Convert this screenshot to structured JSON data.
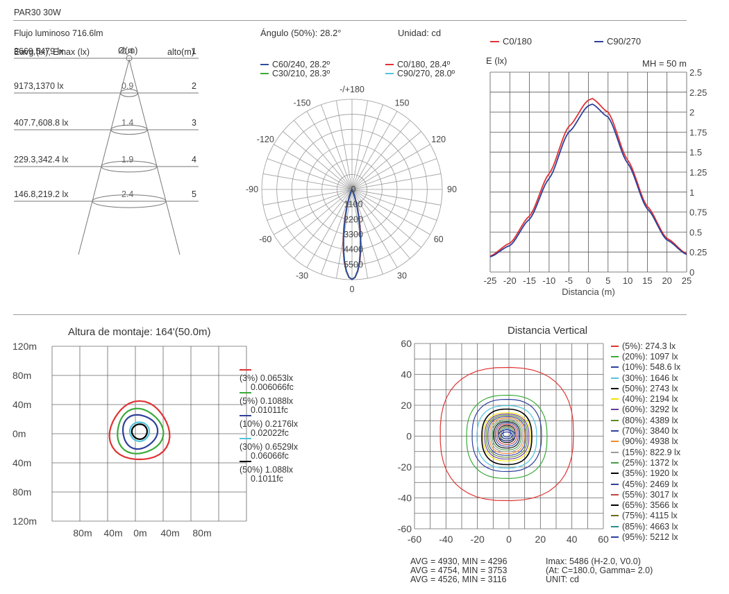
{
  "header": {
    "title": "PAR30 30W"
  },
  "cone": {
    "flux": "Flujo luminoso 716.6lm",
    "col_eavg": "Eavg (lx), Emax (lx)",
    "col_diam": "Ø(m)",
    "col_height": "alto(m)",
    "rows": [
      {
        "lux": "3669,5479 lx",
        "diam": "0.4",
        "height": "1"
      },
      {
        "lux": "9173,1370 lx",
        "diam": "0.9",
        "height": "2"
      },
      {
        "lux": "407.7,608.8 lx",
        "diam": "1.4",
        "height": "3"
      },
      {
        "lux": "229.3,342.4 lx",
        "diam": "1.9",
        "height": "4"
      },
      {
        "lux": "146.8,219.2 lx",
        "diam": "2.4",
        "height": "5"
      }
    ]
  },
  "polar": {
    "angle_text": "Ángulo (50%): 28.2°",
    "unit_text": "Unidad: cd",
    "legend": [
      {
        "label": "C60/240, 28.2º",
        "color": "#2e4f9c"
      },
      {
        "label": "C0/180, 28.4º",
        "color": "#e03232"
      },
      {
        "label": "C30/210, 28.3º",
        "color": "#3aaa3a"
      },
      {
        "label": "C90/270, 28.0º",
        "color": "#52c3dc"
      }
    ],
    "angle_labels": [
      {
        "text": "-/+180",
        "deg": 180
      },
      {
        "text": "-150",
        "deg": -150
      },
      {
        "text": "150",
        "deg": 150
      },
      {
        "text": "-120",
        "deg": -120
      },
      {
        "text": "120",
        "deg": 120
      },
      {
        "text": "-90",
        "deg": -90
      },
      {
        "text": "90",
        "deg": 90
      },
      {
        "text": "-60",
        "deg": -60
      },
      {
        "text": "60",
        "deg": 60
      },
      {
        "text": "-30",
        "deg": -30
      },
      {
        "text": "30",
        "deg": 30
      },
      {
        "text": "0",
        "deg": 0
      }
    ],
    "radial_labels": [
      "0",
      "1100",
      "2200",
      "3300",
      "4400",
      "5500"
    ],
    "rmax": 5500
  },
  "line_chart": {
    "legend": [
      {
        "label": "C0/180",
        "color": "#e03232"
      },
      {
        "label": "C90/270",
        "color": "#2e3f9c"
      }
    ],
    "ylabel": "E (lx)",
    "xlabel": "Distancia (m)",
    "note": "MH = 50 m",
    "x_ticks": [
      "-25",
      "-20",
      "-15",
      "-10",
      "-5",
      "0",
      "5",
      "10",
      "15",
      "20",
      "25"
    ],
    "y_ticks": [
      "0",
      "0.25",
      "0.5",
      "0.75",
      "1",
      "1.25",
      "1.5",
      "1.75",
      "2",
      "2.25",
      "2.5"
    ]
  },
  "chart_data": [
    {
      "type": "line",
      "title": "",
      "xlabel": "Distancia (m)",
      "ylabel": "E (lx)",
      "xlim": [
        -25,
        25
      ],
      "ylim": [
        0,
        2.5
      ],
      "x": [
        -25,
        -20,
        -15,
        -10,
        -5,
        0,
        1,
        5,
        10,
        15,
        20,
        25
      ],
      "series": [
        {
          "name": "C0/180",
          "values": [
            0.2,
            0.36,
            0.7,
            1.23,
            1.82,
            2.15,
            2.17,
            2.0,
            1.4,
            0.82,
            0.42,
            0.23
          ]
        },
        {
          "name": "C90/270",
          "values": [
            0.19,
            0.33,
            0.66,
            1.17,
            1.75,
            2.08,
            2.1,
            1.94,
            1.36,
            0.79,
            0.4,
            0.22
          ]
        }
      ]
    }
  ],
  "mount": {
    "title": "Altura de montaje: 164'(50.0m)",
    "y_ticks": [
      "120m",
      "80m",
      "40m",
      "0m",
      "40m",
      "80m",
      "120m"
    ],
    "x_ticks": [
      "80m",
      "40m",
      "0m",
      "40m",
      "80m"
    ],
    "legend": [
      {
        "l1": "(3%) 0.0653lx",
        "l2": "0.006066fc",
        "color": "#e03232"
      },
      {
        "l1": "(5%) 0.1088lx",
        "l2": "0.01011fc",
        "color": "#3aaa3a"
      },
      {
        "l1": "(10%) 0.2176lx",
        "l2": "0.02022fc",
        "color": "#2e3f9c"
      },
      {
        "l1": "(30%) 0.6529lx",
        "l2": "0.06066fc",
        "color": "#52c3dc"
      },
      {
        "l1": "(50%) 1.088lx",
        "l2": "0.1011fc",
        "color": "#000000"
      }
    ]
  },
  "vertical": {
    "title": "Distancia Vertical",
    "x_ticks": [
      "-60",
      "-40",
      "-20",
      "0",
      "20",
      "40",
      "60"
    ],
    "y_ticks": [
      "60",
      "40",
      "20",
      "0",
      "-20",
      "-40",
      "-60"
    ],
    "legend": [
      {
        "label": "(5%): 274.3 lx",
        "color": "#e03232"
      },
      {
        "label": "(20%): 1097 lx",
        "color": "#3aaa3a"
      },
      {
        "label": "(10%): 548.6 lx",
        "color": "#2e3f9c"
      },
      {
        "label": "(30%): 1646 lx",
        "color": "#52c3dc"
      },
      {
        "label": "(50%): 2743 lx",
        "color": "#000000"
      },
      {
        "label": "(40%): 2194 lx",
        "color": "#f3e100"
      },
      {
        "label": "(60%): 3292 lx",
        "color": "#6a3a9a"
      },
      {
        "label": "(80%): 4389 lx",
        "color": "#5a8a2a"
      },
      {
        "label": "(70%): 3840 lx",
        "color": "#2e3f9c"
      },
      {
        "label": "(90%): 4938 lx",
        "color": "#f08a2a"
      },
      {
        "label": "(15%): 822.9 lx",
        "color": "#9a9a9a"
      },
      {
        "label": "(25%): 1372 lx",
        "color": "#4a9a4a"
      },
      {
        "label": "(35%): 1920 lx",
        "color": "#000000"
      },
      {
        "label": "(45%): 2469 lx",
        "color": "#2e3f9c"
      },
      {
        "label": "(55%): 3017 lx",
        "color": "#c04040"
      },
      {
        "label": "(65%): 3566 lx",
        "color": "#000000"
      },
      {
        "label": "(75%): 4115 lx",
        "color": "#6a6a1a"
      },
      {
        "label": "(85%): 4663 lx",
        "color": "#2a8a8a"
      },
      {
        "label": "(95%): 5212 lx",
        "color": "#2e3f9c"
      }
    ],
    "stats": [
      "AVG = 4930, MIN = 4296",
      "AVG = 4754, MIN = 3753",
      "AVG = 4526, MIN = 3116"
    ],
    "imax": [
      "Imax: 5486 (H-2.0, V0.0)",
      "(At: C=180.0, Gamma= 2.0)",
      "UNIT: cd"
    ]
  }
}
